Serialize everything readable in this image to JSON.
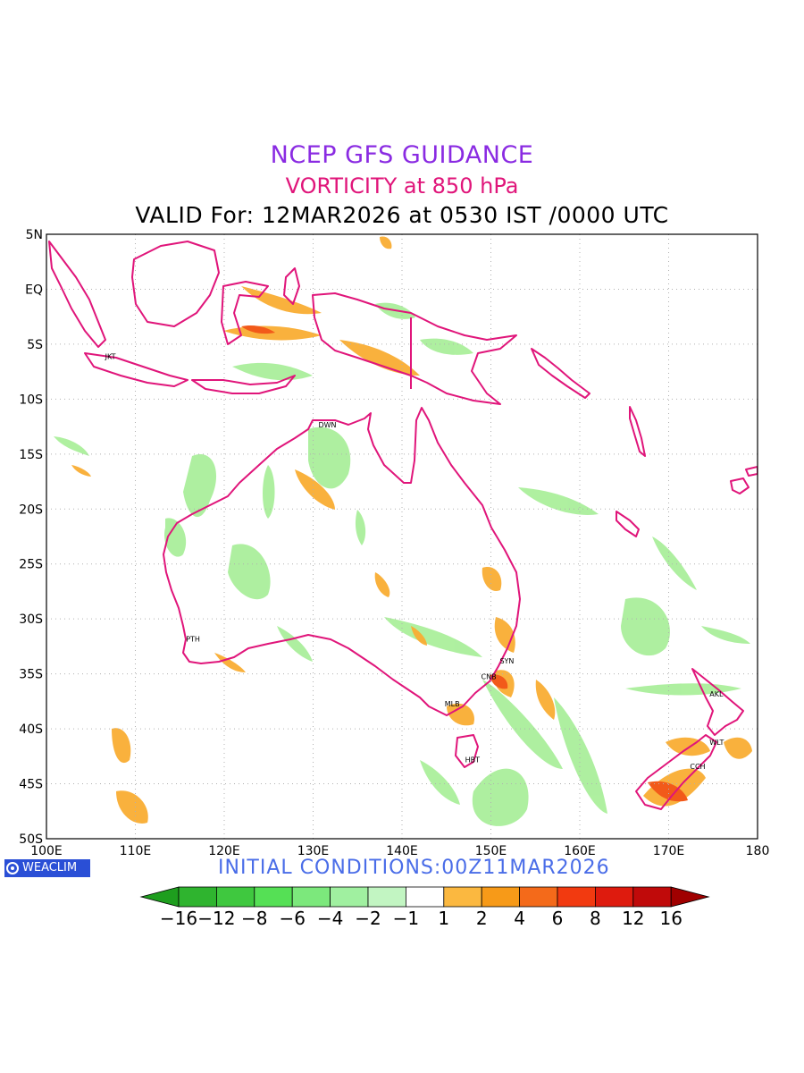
{
  "header": {
    "line1": "NCEP GFS GUIDANCE",
    "line2": "VORTICITY at 850 hPa",
    "line3": "VALID For: 12MAR2026 at 0530 IST /0000 UTC"
  },
  "map": {
    "lat_labels": [
      "5N",
      "EQ",
      "5S",
      "10S",
      "15S",
      "20S",
      "25S",
      "30S",
      "35S",
      "40S",
      "45S",
      "50S"
    ],
    "lon_labels": [
      "100E",
      "110E",
      "120E",
      "130E",
      "140E",
      "150E",
      "160E",
      "170E",
      "180"
    ],
    "stations": [
      {
        "code": "JKT",
        "lon": 106.8,
        "lat": -6.2
      },
      {
        "code": "DWN",
        "lon": 130.8,
        "lat": -12.4
      },
      {
        "code": "PTH",
        "lon": 115.9,
        "lat": -31.9
      },
      {
        "code": "SYN",
        "lon": 151.2,
        "lat": -33.9
      },
      {
        "code": "CNB",
        "lon": 149.1,
        "lat": -35.3
      },
      {
        "code": "MLB",
        "lon": 145.0,
        "lat": -37.8
      },
      {
        "code": "HBT",
        "lon": 147.3,
        "lat": -42.9
      },
      {
        "code": "AKL",
        "lon": 174.8,
        "lat": -36.9
      },
      {
        "code": "WLT",
        "lon": 174.8,
        "lat": -41.3
      },
      {
        "code": "CCH",
        "lon": 172.6,
        "lat": -43.5
      }
    ],
    "lon_range": [
      100,
      180
    ],
    "lat_range": [
      -50,
      5
    ],
    "coastline_color": "#e0157a"
  },
  "footer": {
    "brand": "WEACLIM",
    "initial_conditions": "INITIAL CONDITIONS:00Z11MAR2026"
  },
  "colorbar": {
    "labels": [
      "−16",
      "−12",
      "−8",
      "−6",
      "−4",
      "−2",
      "−1",
      "1",
      "2",
      "4",
      "6",
      "8",
      "12",
      "16"
    ],
    "colors": [
      "#1e9e1e",
      "#2fb42f",
      "#3fc83f",
      "#55e055",
      "#7ce87c",
      "#a0f0a0",
      "#c2f5c2",
      "#ffffff",
      "#fbb840",
      "#f79a18",
      "#f46a1a",
      "#f23a10",
      "#de1b0e",
      "#c00a0a",
      "#a00000"
    ]
  }
}
